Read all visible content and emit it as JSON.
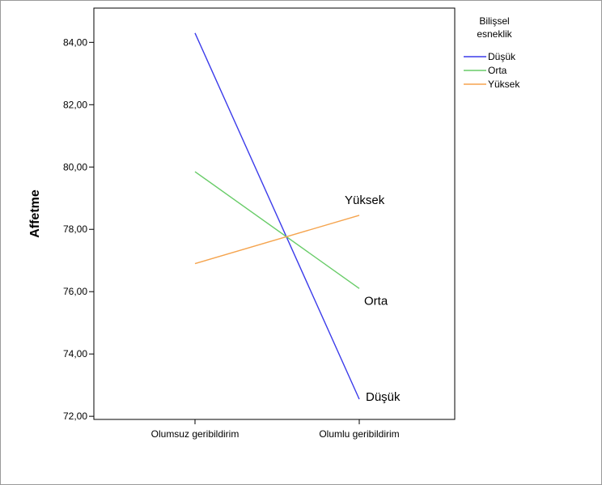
{
  "chart_data": {
    "type": "line",
    "ylabel": "Affetme",
    "xlabel": "",
    "categories": [
      "Olumsuz geribildirim",
      "Olumlu geribildirim"
    ],
    "ylim": [
      71.9,
      85.1
    ],
    "yticks": [
      "72,00",
      "74,00",
      "76,00",
      "78,00",
      "80,00",
      "82,00",
      "84,00"
    ],
    "legend": {
      "title_lines": [
        "Bilişsel",
        "esneklik"
      ],
      "placement": "right"
    },
    "series": [
      {
        "name": "Düşük",
        "values": [
          84.3,
          72.55
        ],
        "color": "#3b3bea",
        "annotation": "Düşük"
      },
      {
        "name": "Orta",
        "values": [
          79.85,
          76.1
        ],
        "color": "#68cc68",
        "annotation": "Orta"
      },
      {
        "name": "Yüksek",
        "values": [
          76.9,
          78.45
        ],
        "color": "#f5a44e",
        "annotation": "Yüksek"
      }
    ]
  }
}
